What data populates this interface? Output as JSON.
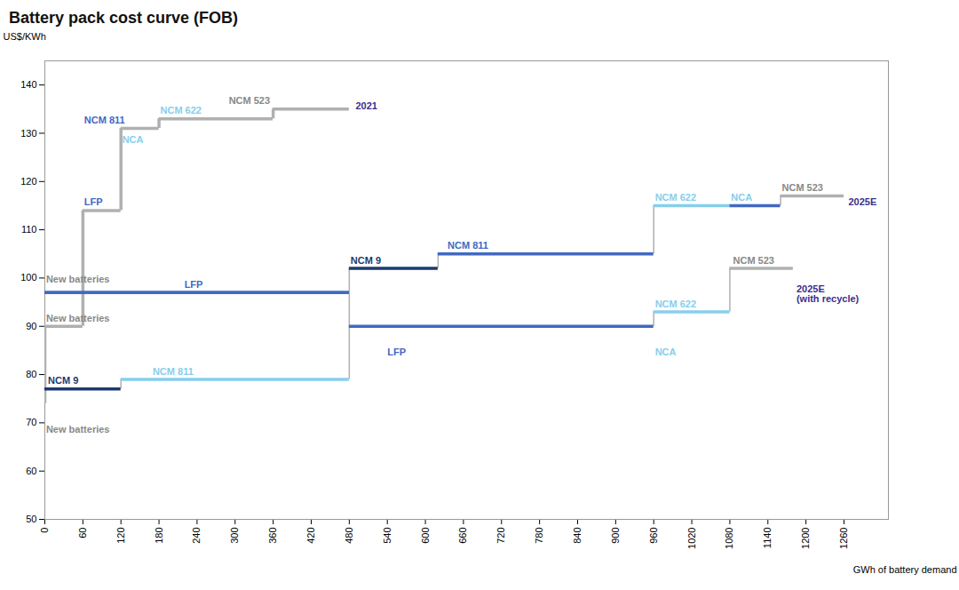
{
  "chart_data": {
    "type": "line",
    "title": "Battery pack cost curve (FOB)",
    "xlabel": "GWh of battery demand",
    "ylabel": "US$/KWh",
    "xlim": [
      0,
      1330
    ],
    "xticks": [
      0,
      60,
      120,
      180,
      240,
      300,
      360,
      420,
      480,
      540,
      600,
      660,
      720,
      780,
      840,
      900,
      960,
      1020,
      1080,
      1140,
      1200,
      1260
    ],
    "ylim": [
      50,
      145
    ],
    "yticks": [
      50,
      60,
      70,
      80,
      90,
      100,
      110,
      120,
      130,
      140
    ],
    "grid": false,
    "series": [
      {
        "color": "#b0b0b0",
        "segments": [
          {
            "x0": 0,
            "x1": 60,
            "y": 90
          },
          {
            "x0": 60,
            "x1": 120,
            "y": 114
          },
          {
            "x0": 120,
            "x1": 180,
            "y": 131
          },
          {
            "x0": 180,
            "x1": 360,
            "y": 133
          },
          {
            "x0": 360,
            "x1": 480,
            "y": 135
          }
        ],
        "connectors": [
          {
            "x": 0,
            "y0": 74,
            "y1": 90
          },
          {
            "x": 60,
            "y0": 90,
            "y1": 114
          },
          {
            "x": 120,
            "y0": 114,
            "y1": 131
          },
          {
            "x": 180,
            "y0": 131,
            "y1": 133
          },
          {
            "x": 360,
            "y0": 133,
            "y1": 135
          }
        ]
      },
      {
        "color": "#b0b0b0",
        "segments": [
          {
            "x0": 0,
            "x1": 480,
            "y": 97,
            "color": "#4169c4"
          },
          {
            "x0": 480,
            "x1": 620,
            "y": 102,
            "color": "#1e3a6e"
          },
          {
            "x0": 620,
            "x1": 960,
            "y": 105,
            "color": "#4169c4"
          },
          {
            "x0": 960,
            "x1": 1080,
            "y": 115,
            "color": "#87ceeb"
          },
          {
            "x0": 1080,
            "x1": 1160,
            "y": 115,
            "color": "#4169c4"
          },
          {
            "x0": 1160,
            "x1": 1260,
            "y": 117,
            "color": "#b0b0b0"
          }
        ],
        "connectors": [
          {
            "x": 480,
            "y0": 97,
            "y1": 102
          },
          {
            "x": 620,
            "y0": 102,
            "y1": 105
          },
          {
            "x": 960,
            "y0": 105,
            "y1": 115
          },
          {
            "x": 1080,
            "y0": 115,
            "y1": 115
          },
          {
            "x": 1160,
            "y0": 115,
            "y1": 117
          }
        ]
      },
      {
        "color": "#b0b0b0",
        "segments": [
          {
            "x0": 0,
            "x1": 480,
            "y": 97,
            "color": "#4169c4"
          },
          {
            "x0": 480,
            "x1": 960,
            "y": 90,
            "color": "#4169c4"
          },
          {
            "x0": 960,
            "x1": 1080,
            "y": 93,
            "color": "#87ceeb"
          },
          {
            "x0": 1080,
            "x1": 1180,
            "y": 102,
            "color": "#b0b0b0"
          }
        ],
        "connectors": [
          {
            "x": 480,
            "y0": 97,
            "y1": 90
          },
          {
            "x": 960,
            "y0": 90,
            "y1": 93
          },
          {
            "x": 1080,
            "y0": 93,
            "y1": 102
          }
        ]
      },
      {
        "color": "#b0b0b0",
        "segments": [
          {
            "x0": 0,
            "x1": 120,
            "y": 77,
            "color": "#1e3a6e"
          },
          {
            "x0": 120,
            "x1": 480,
            "y": 79,
            "color": "#87ceeb"
          }
        ],
        "connectors": [
          {
            "x": 0,
            "y0": 74,
            "y1": 77
          },
          {
            "x": 120,
            "y0": 77,
            "y1": 79
          },
          {
            "x": 480,
            "y0": 79,
            "y1": 90
          }
        ]
      }
    ],
    "annotations": [
      {
        "text": "New batteries",
        "x": 2,
        "y": 91,
        "color": "#888888"
      },
      {
        "text": "LFP",
        "x": 62,
        "y": 115,
        "color": "#4169c4"
      },
      {
        "text": "NCM 811",
        "x": 62,
        "y": 132,
        "color": "#4169c4"
      },
      {
        "text": "NCA",
        "x": 122,
        "y": 128,
        "color": "#87ceeb"
      },
      {
        "text": "NCM 622",
        "x": 182,
        "y": 134,
        "color": "#87ceeb"
      },
      {
        "text": "NCM 523",
        "x": 290,
        "y": 136,
        "color": "#888888"
      },
      {
        "text": "2021",
        "x": 490,
        "y": 135,
        "color": "#3b2f8a"
      },
      {
        "text": "New batteries",
        "x": 2,
        "y": 99,
        "color": "#888888"
      },
      {
        "text": "LFP",
        "x": 220,
        "y": 98,
        "color": "#4169c4"
      },
      {
        "text": "NCM 9",
        "x": 482,
        "y": 103,
        "color": "#1e3a6e"
      },
      {
        "text": "NCM 811",
        "x": 635,
        "y": 106,
        "color": "#4169c4"
      },
      {
        "text": "NCM 622",
        "x": 962,
        "y": 116,
        "color": "#87ceeb"
      },
      {
        "text": "NCA",
        "x": 1082,
        "y": 116,
        "color": "#87ceeb"
      },
      {
        "text": "NCM 523",
        "x": 1162,
        "y": 118,
        "color": "#888888"
      },
      {
        "text": "2025E",
        "x": 1267,
        "y": 115,
        "color": "#3b2f8a"
      },
      {
        "text": "New batteries",
        "x": 2,
        "y": 68,
        "color": "#888888"
      },
      {
        "text": "NCM 9",
        "x": 5,
        "y": 78,
        "color": "#1e3a6e"
      },
      {
        "text": "NCM 811",
        "x": 170,
        "y": 80,
        "color": "#87ceeb"
      },
      {
        "text": "LFP",
        "x": 540,
        "y": 84,
        "color": "#4169c4"
      },
      {
        "text": "NCA",
        "x": 962,
        "y": 84,
        "color": "#87ceeb"
      },
      {
        "text": "NCM 622",
        "x": 962,
        "y": 94,
        "color": "#87ceeb"
      },
      {
        "text": "NCM 523",
        "x": 1085,
        "y": 103,
        "color": "#888888"
      },
      {
        "text": "2025E\n(with recycle)",
        "x": 1185,
        "y": 95,
        "color": "#3b2f8a"
      }
    ]
  }
}
